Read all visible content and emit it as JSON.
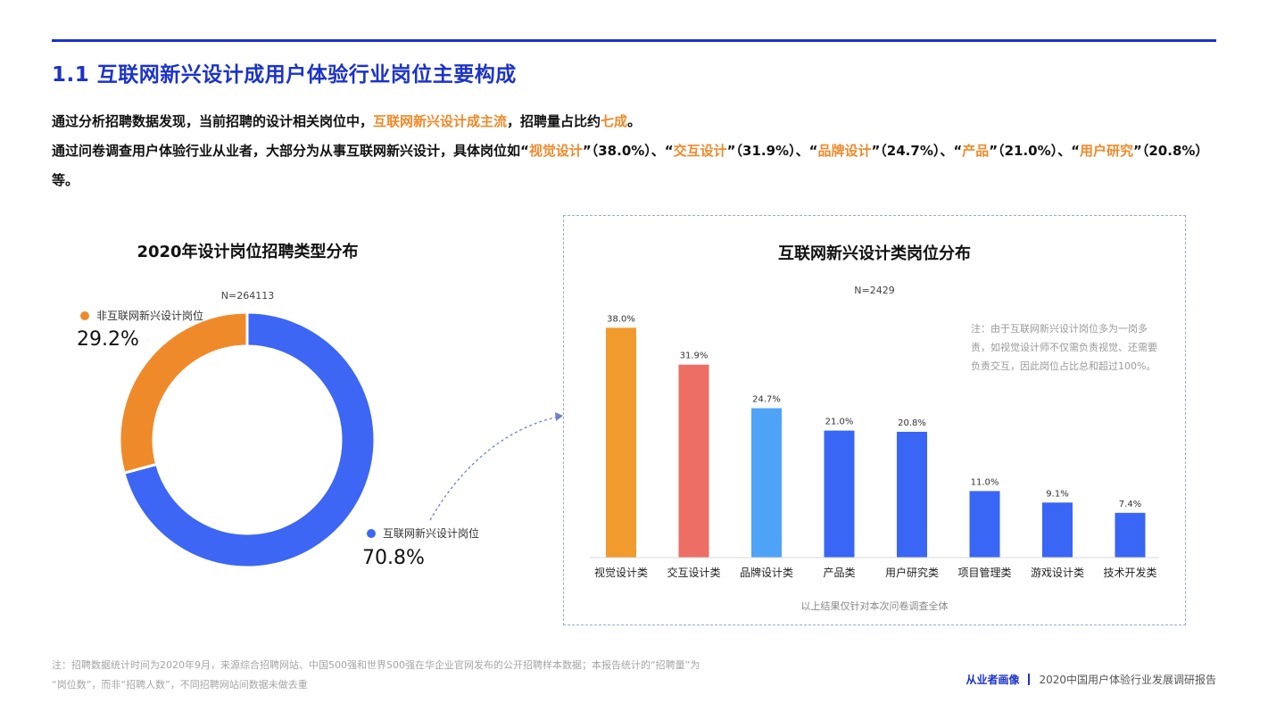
{
  "page": {
    "title": "1.1 互联网新兴设计成用户体验行业岗位主要构成",
    "intro": {
      "line1": [
        {
          "text": "通过分析招聘数据发现，当前招聘的设计相关岗位中，",
          "hl": false
        },
        {
          "text": "互联网新兴设计成主流",
          "hl": true
        },
        {
          "text": "，招聘量占比约",
          "hl": false
        },
        {
          "text": "七成",
          "hl": true
        },
        {
          "text": "。",
          "hl": false
        }
      ],
      "line2": [
        {
          "text": "通过问卷调查用户体验行业从业者，大部分为从事互联网新兴设计，具体岗位如“",
          "hl": false
        },
        {
          "text": "视觉设计",
          "hl": true
        },
        {
          "text": "”（38.0%）、“",
          "hl": false
        },
        {
          "text": "交互设计",
          "hl": true
        },
        {
          "text": "”（31.9%）、“",
          "hl": false
        },
        {
          "text": "品牌设计",
          "hl": true
        },
        {
          "text": "”（24.7%）、“",
          "hl": false
        },
        {
          "text": "产品",
          "hl": true
        },
        {
          "text": "”（21.0%）、“",
          "hl": false
        },
        {
          "text": "用户研究",
          "hl": true
        },
        {
          "text": "”（20.8%）等。",
          "hl": false
        }
      ]
    },
    "footnote_line1": "注：招聘数据统计时间为2020年9月，来源综合招聘网站、中国500强和世界500强在华企业官网发布的公开招聘样本数据；本报告统计的“招聘量”为",
    "footnote_line2": "“岗位数”，而非“招聘人数”，不同招聘网站间数据未做去重",
    "brand_section": "从业者画像",
    "brand_report": "2020中国用户体验行业发展调研报告"
  },
  "colors": {
    "primary_blue": "#1c33c9",
    "highlight_orange": "#f0892a",
    "donut_blue": "#3d66f5",
    "donut_orange": "#ef8a2b",
    "bar_orange": "#f19a2e",
    "bar_red": "#ec6e64",
    "bar_lightblue": "#4ea3f7",
    "bar_blue": "#3a66f5"
  },
  "chart_data": [
    {
      "type": "pie",
      "title": "2020年设计岗位招聘类型分布",
      "n_label": "N=264113",
      "categories": [
        "非互联网新兴设计岗位",
        "互联网新兴设计岗位"
      ],
      "values": [
        29.2,
        70.8
      ],
      "value_labels": [
        "29.2%",
        "70.8%"
      ]
    },
    {
      "type": "bar",
      "title": "互联网新兴设计类岗位分布",
      "n_label": "N=2429",
      "categories": [
        "视觉设计类",
        "交互设计类",
        "品牌设计类",
        "产品类",
        "用户研究类",
        "项目管理类",
        "游戏设计类",
        "技术开发类"
      ],
      "values": [
        38.0,
        31.9,
        24.7,
        21.0,
        20.8,
        11.0,
        9.1,
        7.4
      ],
      "value_labels": [
        "38.0%",
        "31.9%",
        "24.7%",
        "21.0%",
        "20.8%",
        "11.0%",
        "9.1%",
        "7.4%"
      ],
      "note": "注：由于互联网新兴设计岗位多为一岗多责，如视觉设计师不仅需负责视觉、还需要负责交互，因此岗位占比总和超过100%。",
      "footer": "以上结果仅针对本次问卷调查全体"
    }
  ]
}
